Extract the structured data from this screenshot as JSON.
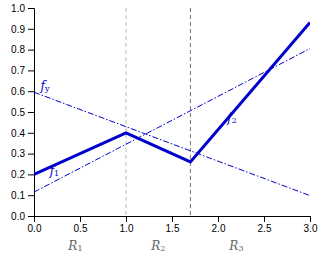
{
  "chart_data": {
    "type": "line",
    "series": [
      {
        "x": [
          0,
          3.0
        ],
        "values": [
          0.595,
          0.098
        ],
        "color": "#0000cc",
        "line_style": "dashdot"
      },
      {
        "x": [
          0,
          3.0
        ],
        "values": [
          0.115,
          0.805
        ],
        "color": "#0000cc",
        "line_style": "dashdot"
      },
      {
        "x": [
          0,
          1.0,
          1.0,
          1.7,
          1.7,
          3.0
        ],
        "values": [
          0.2,
          0.4,
          0.4,
          0.26,
          0.26,
          0.93
        ],
        "color": "#0000cc",
        "line_style": "solid"
      }
    ],
    "vlines": [
      {
        "x": 1.0,
        "color": "#bbbbbb",
        "line_style": "dashed"
      },
      {
        "x": 1.7,
        "color": "#777777",
        "line_style": "dashed"
      }
    ],
    "annotations": [
      {
        "text": "f1",
        "x": 0.17,
        "y": 0.215,
        "color": "#0000cc"
      },
      {
        "text": "fy",
        "x": 0.07,
        "y": 0.625,
        "color": "#0000cc"
      },
      {
        "text": "f2",
        "x": 2.1,
        "y": 0.47,
        "color": "#0000cc"
      },
      {
        "text": "R1",
        "x": 0.45,
        "color": "#666666"
      },
      {
        "text": "R2",
        "x": 1.35,
        "color": "#666666"
      },
      {
        "text": "R3",
        "x": 2.2,
        "color": "#666666"
      }
    ],
    "xlim": [
      0,
      3
    ],
    "ylim": [
      0,
      1
    ],
    "xticks": [
      {
        "value": 0,
        "label": "0.0"
      },
      {
        "value": 0.5,
        "label": "0.5"
      },
      {
        "value": 1,
        "label": "1.0"
      },
      {
        "value": 1.5,
        "label": "1.5"
      },
      {
        "value": 2,
        "label": "2.0"
      },
      {
        "value": 2.5,
        "label": "2.5"
      },
      {
        "value": 3,
        "label": "3.0"
      }
    ],
    "yticks": [
      {
        "value": 0,
        "label": "0.0"
      },
      {
        "value": 0.1,
        "label": "0.1"
      },
      {
        "value": 0.2,
        "label": "0.2"
      },
      {
        "value": 0.3,
        "label": "0.3"
      },
      {
        "value": 0.4,
        "label": "0.4"
      },
      {
        "value": 0.5,
        "label": "0.5"
      },
      {
        "value": 0.6,
        "label": "0.6"
      },
      {
        "value": 0.7,
        "label": "0.7"
      },
      {
        "value": 0.8,
        "label": "0.8"
      },
      {
        "value": 0.9,
        "label": "0.9"
      },
      {
        "value": 1,
        "label": "1.0"
      }
    ],
    "grid": false
  }
}
